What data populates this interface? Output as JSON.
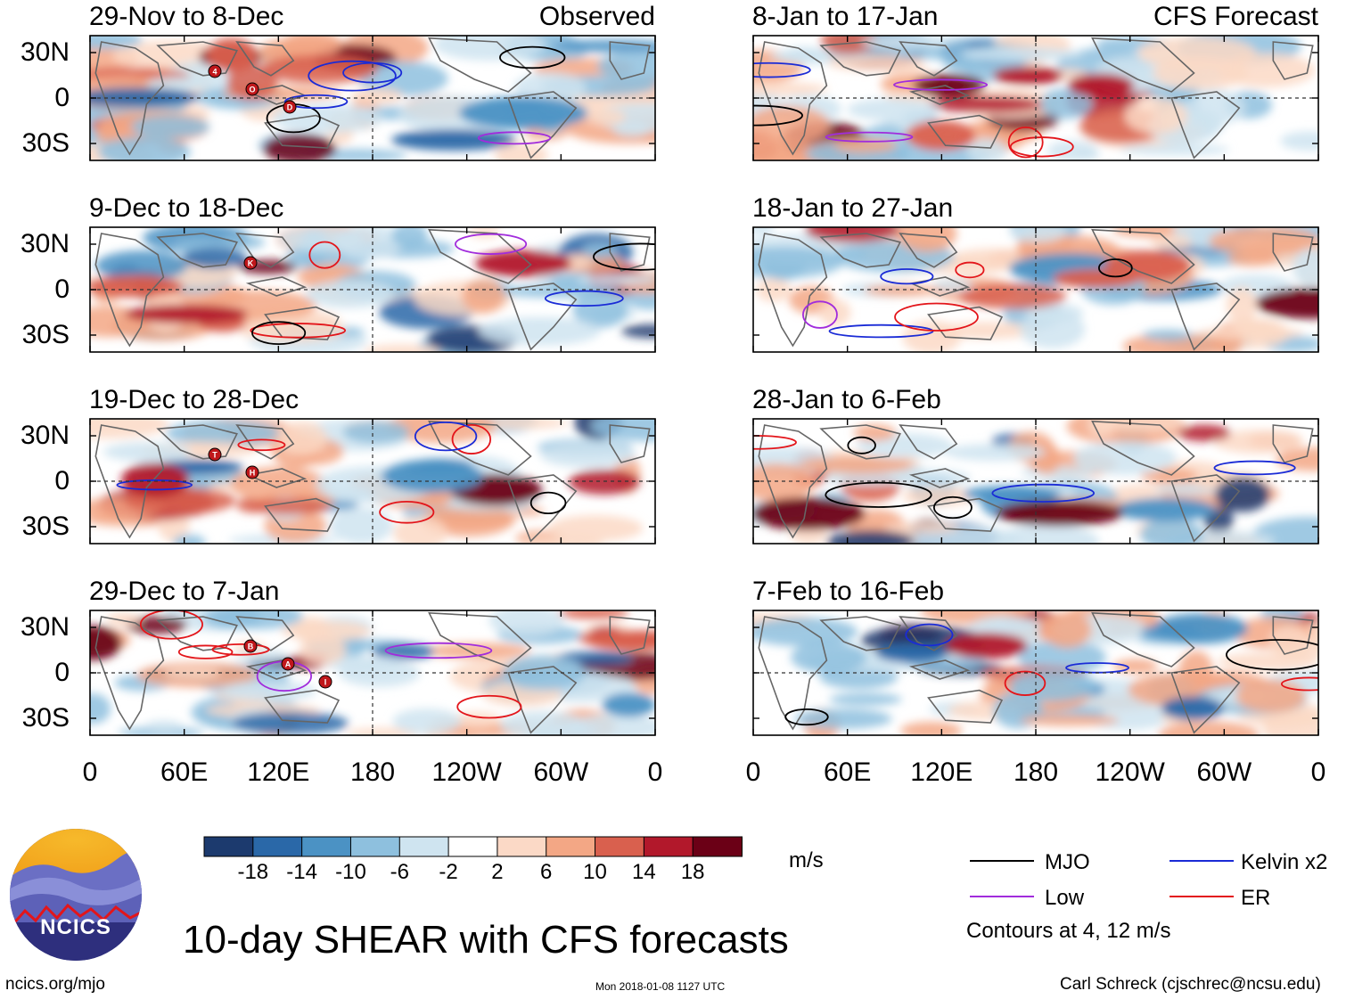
{
  "title": "10-day SHEAR with CFS forecasts",
  "site": "ncics.org/mjo",
  "timestamp": "Mon 2018-01-08 1127 UTC",
  "credit": "Carl Schreck (cjschrec@ncsu.edu)",
  "logo_text": "NCICS",
  "units": "m/s",
  "contour_note": "Contours at 4, 12 m/s",
  "column_labels": {
    "observed": "Observed",
    "forecast": "CFS Forecast"
  },
  "lat_labels": [
    "30N",
    "0",
    "30S"
  ],
  "lon_labels": [
    "0",
    "60E",
    "120E",
    "180",
    "120W",
    "60W",
    "0"
  ],
  "panels": [
    {
      "period": "29-Nov to 8-Dec",
      "column": "observed"
    },
    {
      "period": "9-Dec to 18-Dec",
      "column": "observed"
    },
    {
      "period": "19-Dec to 28-Dec",
      "column": "observed"
    },
    {
      "period": "29-Dec to 7-Jan",
      "column": "observed"
    },
    {
      "period": "8-Jan to 17-Jan",
      "column": "forecast"
    },
    {
      "period": "18-Jan to 27-Jan",
      "column": "forecast"
    },
    {
      "period": "28-Jan to 6-Feb",
      "column": "forecast"
    },
    {
      "period": "7-Feb to 16-Feb",
      "column": "forecast"
    }
  ],
  "colorbar": {
    "ticks": [
      "-18",
      "-14",
      "-10",
      "-6",
      "-2",
      "2",
      "6",
      "10",
      "14",
      "18"
    ],
    "colors": [
      "#1c3a6e",
      "#2a68a8",
      "#4b92c4",
      "#8ec0de",
      "#cfe4f0",
      "#ffffff",
      "#fbd9c6",
      "#f3a785",
      "#d9604e",
      "#b2182b",
      "#6b0016"
    ]
  },
  "legend": [
    {
      "label": "MJO",
      "color": "#000000"
    },
    {
      "label": "Kelvin x2",
      "color": "#1a2bd6"
    },
    {
      "label": "Low",
      "color": "#a12cdc"
    },
    {
      "label": "ER",
      "color": "#e3151a"
    }
  ],
  "storm_markers": [
    {
      "panel": 0,
      "labels": [
        "4",
        "O",
        "D"
      ]
    },
    {
      "panel": 1,
      "labels": [
        "K"
      ]
    },
    {
      "panel": 2,
      "labels": [
        "T",
        "H"
      ]
    },
    {
      "panel": 3,
      "labels": [
        "B",
        "A",
        "I"
      ]
    }
  ]
}
